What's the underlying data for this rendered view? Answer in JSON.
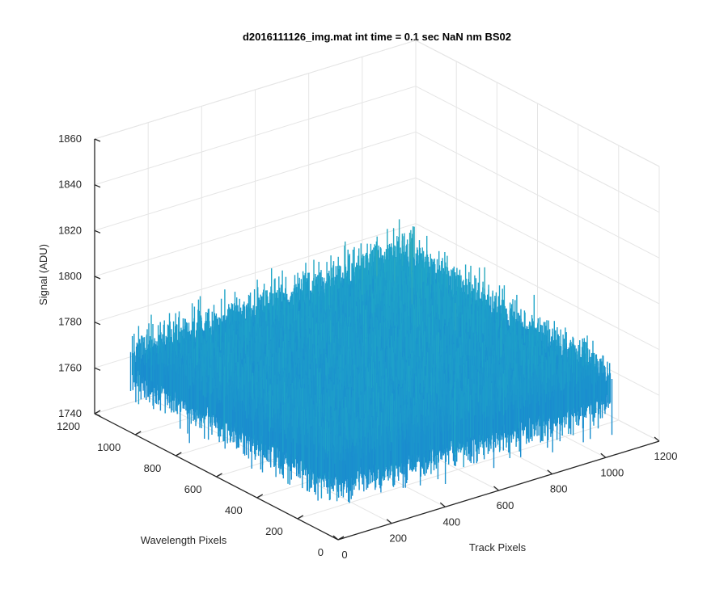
{
  "chart_data": {
    "type": "surface",
    "title": "d2016111126_img.mat int time = 0.1 sec  NaN nm BS02",
    "xlabel": "Track Pixels",
    "ylabel": "Wavelength Pixels",
    "zlabel": "Signal (ADU)",
    "xlim": [
      0,
      1200
    ],
    "ylim": [
      0,
      1200
    ],
    "zlim": [
      1740,
      1860
    ],
    "x_ticks": [
      0,
      200,
      400,
      600,
      800,
      1000,
      1200
    ],
    "y_ticks": [
      0,
      200,
      400,
      600,
      800,
      1000,
      1200
    ],
    "z_ticks": [
      1740,
      1760,
      1780,
      1800,
      1820,
      1840,
      1860
    ],
    "x_tick_labels": [
      "0",
      "200",
      "400",
      "600",
      "800",
      "1000",
      "1200"
    ],
    "y_tick_labels": [
      "0",
      "200",
      "400",
      "600",
      "800",
      "1000",
      "1200"
    ],
    "z_tick_labels": [
      "1740",
      "1760",
      "1780",
      "1800",
      "1820",
      "1840",
      "1860"
    ],
    "grid": true,
    "colormap": "parula",
    "surface": {
      "x_range": [
        1,
        1024
      ],
      "y_range": [
        1,
        1024
      ],
      "baseline": 1769,
      "noise_min": 1750,
      "noise_max": 1790,
      "peak_max": 1845,
      "peak_location": [
        1024,
        1024
      ]
    },
    "colors": {
      "low": "#1470d6",
      "mid": "#1fa6c8",
      "high": "#a6c84a",
      "axis": "#262626",
      "grid": "#e5e5e5"
    }
  }
}
